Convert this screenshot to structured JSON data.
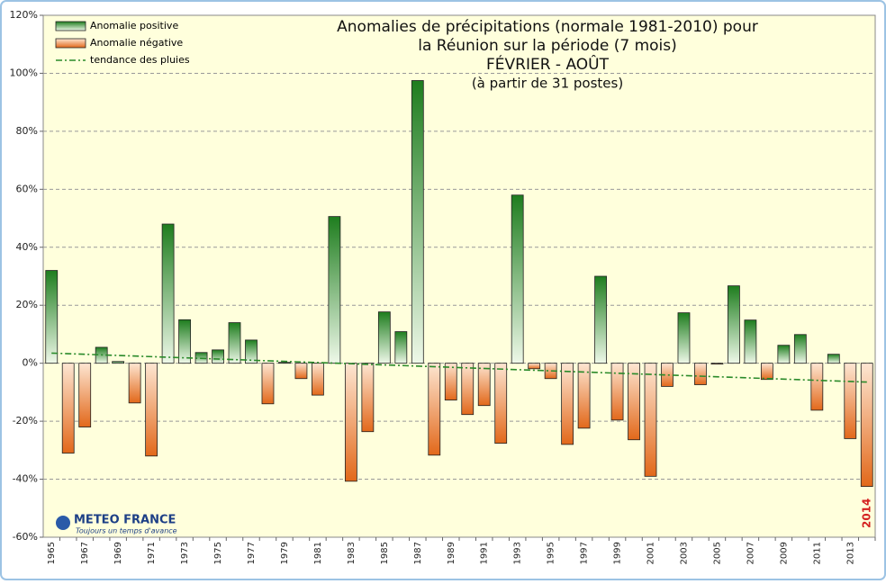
{
  "chart_data": {
    "type": "bar",
    "title_lines": [
      "Anomalies de précipitations (normale 1981-2010) pour",
      "la Réunion sur la période (7 mois)",
      "FÉVRIER - AOÛT",
      "(à partir de 31 postes)"
    ],
    "categories": [
      "1965",
      null,
      "1967",
      null,
      "1969",
      null,
      "1971",
      null,
      "1973",
      null,
      "1975",
      null,
      "1977",
      null,
      "1979",
      null,
      "1981",
      null,
      "1983",
      null,
      "1985",
      null,
      "1987",
      null,
      "1989",
      null,
      "1991",
      null,
      "1993",
      null,
      "1995",
      null,
      "1997",
      null,
      "1999",
      null,
      "2001",
      null,
      "2003",
      null,
      "2005",
      null,
      "2007",
      null,
      "2009",
      null,
      "2011",
      null,
      "2013",
      "2014"
    ],
    "values": [
      32,
      -31,
      -22,
      5.5,
      0.6,
      -13.7,
      -32,
      48,
      15,
      3.7,
      4.6,
      14,
      8,
      -14,
      0.3,
      -5.3,
      -11,
      50.6,
      -40.7,
      -23.6,
      17.7,
      10.9,
      97.5,
      -31.7,
      -12.7,
      -17.7,
      -14.6,
      -27.6,
      58,
      -1.9,
      -5.3,
      -28,
      -22.4,
      30,
      -19.6,
      -26.4,
      -39,
      -8,
      17.4,
      -7.4,
      -0.3,
      26.7,
      14.9,
      -5.6,
      6.2,
      9.9,
      -16.2,
      3.1,
      -26,
      -42.5
    ],
    "positive_color": "#1e7d1e",
    "negative_color": "#e2681a",
    "trend": {
      "name": "tendance des pluies",
      "color": "#2a8a2a",
      "values": [
        3.5,
        -6.5
      ]
    },
    "legend": [
      "Anomalie positive",
      "Anomalie négative"
    ],
    "ylim": [
      -60,
      120
    ],
    "yticks": [
      {
        "value": -60,
        "label": "-60%"
      },
      {
        "value": -40,
        "label": "-40%"
      },
      {
        "value": -20,
        "label": "-20%"
      },
      {
        "value": 0,
        "label": "0%"
      },
      {
        "value": 20,
        "label": "20%"
      },
      {
        "value": 40,
        "label": "40%"
      },
      {
        "value": 60,
        "label": "60%"
      },
      {
        "value": 80,
        "label": "80%"
      },
      {
        "value": 100,
        "label": "100%"
      },
      {
        "value": 120,
        "label": "120%"
      }
    ],
    "grid": true,
    "logo": {
      "name": "METEO FRANCE",
      "slogan": "Toujours un temps d'avance"
    }
  }
}
